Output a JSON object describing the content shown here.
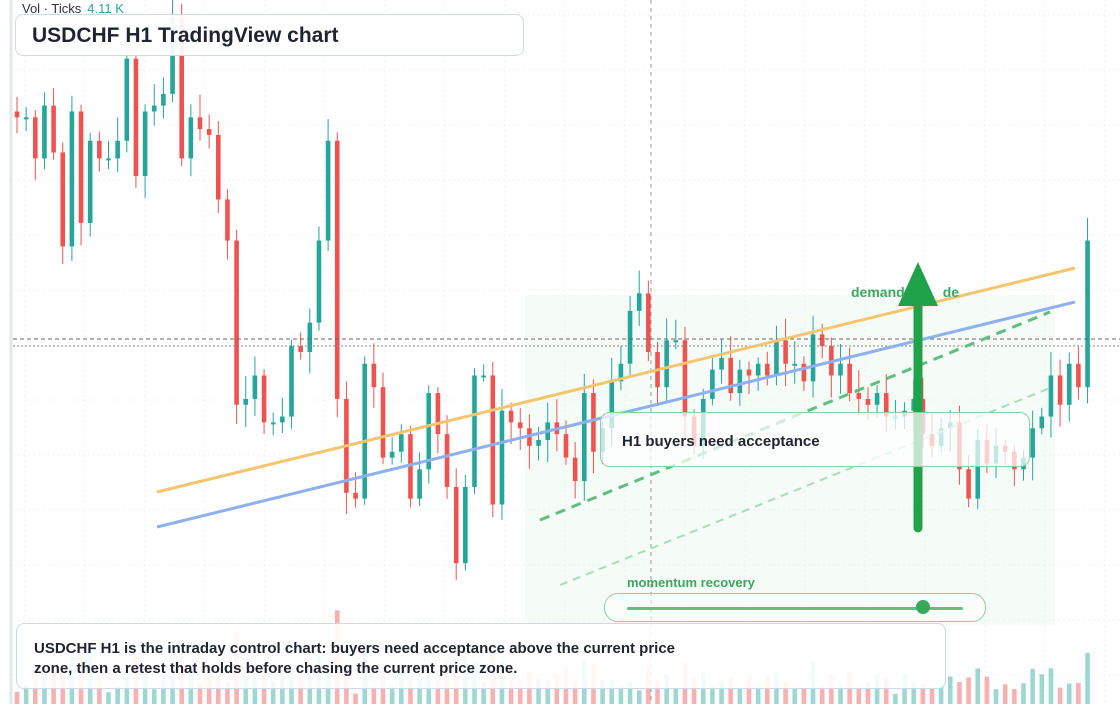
{
  "header": {
    "title": "USDCHF H1 TradingView chart",
    "volume_label": "Vol · Ticks",
    "volume_value": "4.11 K"
  },
  "annotations": {
    "bias": "H1 buyers need acceptance",
    "demand": "demand",
    "demand_suffix": "de",
    "momentum": "momentum recovery",
    "momentum_level": 0.88,
    "note": "USDCHF H1 is the intraday control chart: buyers need acceptance above the current price zone, then a retest that holds before chasing the current price zone."
  },
  "colors": {
    "up": "#26a69a",
    "down": "#ef5350",
    "resistance_line": "#f5c46e",
    "trend_line": "#8fb0ee",
    "accent_green": "#1ea34a"
  },
  "chart_data": {
    "type": "candlestick",
    "symbol": "USDCHF",
    "timeframe": "H1",
    "candle_count": 118,
    "close_path": [
      100,
      100,
      93,
      102,
      94,
      78,
      101,
      82,
      96,
      93,
      93,
      96,
      110,
      90,
      101,
      102,
      104,
      117,
      93,
      100,
      98,
      97,
      86,
      79,
      51,
      52,
      56,
      48,
      48,
      49,
      61,
      60,
      65,
      79,
      96,
      52,
      36,
      35,
      58,
      54,
      42,
      43,
      46,
      35,
      40,
      53,
      46,
      37,
      24,
      37,
      56,
      56,
      34,
      50,
      48,
      47,
      44,
      45,
      48,
      46,
      42,
      38,
      53,
      43,
      47,
      55,
      58,
      67,
      70,
      60,
      54,
      62,
      62,
      49,
      44,
      52,
      57,
      59,
      53,
      57,
      56,
      58,
      56,
      62,
      58,
      58,
      55,
      63,
      61,
      56,
      58,
      53,
      52,
      51,
      53,
      49,
      49,
      50,
      52,
      46,
      44,
      47,
      48,
      40,
      35,
      45,
      41,
      44,
      43,
      40,
      42,
      47,
      49,
      56,
      51,
      58,
      54,
      79
    ],
    "y_min": 0,
    "y_max": 120,
    "grid": true,
    "overlays": [
      "resistance line",
      "trend line",
      "dashed channel",
      "target arrow"
    ]
  }
}
